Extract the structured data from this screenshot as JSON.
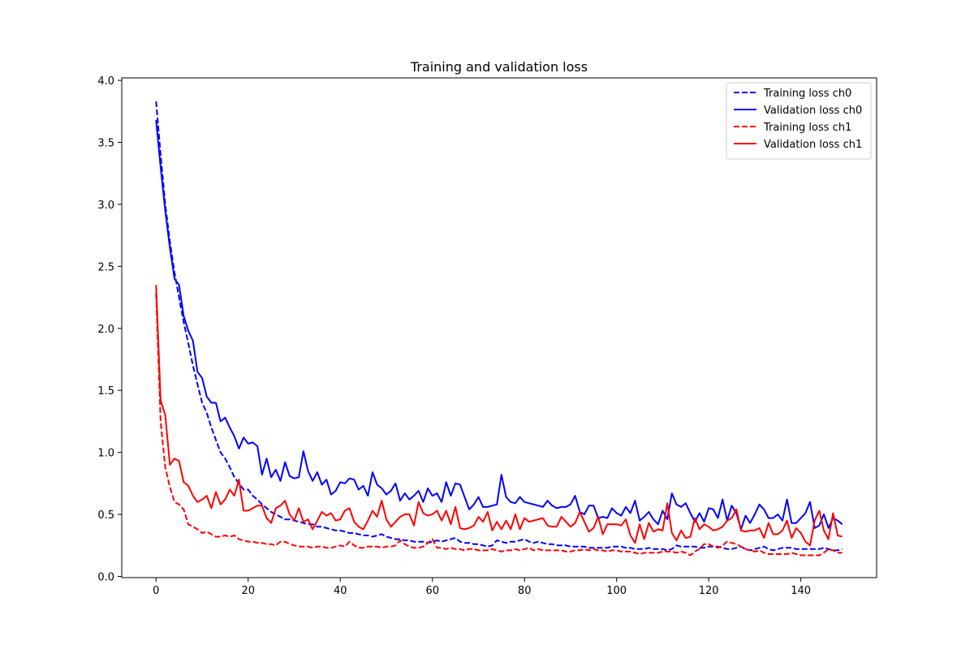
{
  "chart_data": {
    "type": "line",
    "title": "Training and validation loss",
    "xlabel": "",
    "ylabel": "",
    "xlim": [
      -7.45,
      156.45
    ],
    "ylim": [
      -0.01,
      4.02
    ],
    "x_ticks": [
      0,
      20,
      40,
      60,
      80,
      100,
      120,
      140
    ],
    "y_ticks": [
      0.0,
      0.5,
      1.0,
      1.5,
      2.0,
      2.5,
      3.0,
      3.5,
      4.0
    ],
    "grid": false,
    "legend_position": "top-right",
    "series": [
      {
        "name": "Training loss ch0",
        "color": "#0000ff",
        "dash": "dashed",
        "x": [
          0,
          1,
          2,
          3,
          4,
          5,
          6,
          7,
          8,
          9,
          10,
          11,
          12,
          13,
          14,
          15,
          16,
          17,
          18,
          19,
          20,
          21,
          22,
          23,
          24,
          25,
          26,
          27,
          28,
          29,
          30,
          31,
          32,
          33,
          34,
          35,
          36,
          37,
          38,
          39,
          40,
          41,
          42,
          43,
          44,
          45,
          46,
          47,
          48,
          49,
          50,
          51,
          52,
          53,
          54,
          55,
          56,
          57,
          58,
          59,
          60,
          61,
          62,
          63,
          64,
          65,
          66,
          67,
          68,
          69,
          70,
          71,
          72,
          73,
          74,
          75,
          76,
          77,
          78,
          79,
          80,
          81,
          82,
          83,
          84,
          85,
          86,
          87,
          88,
          89,
          90,
          91,
          92,
          93,
          94,
          95,
          96,
          97,
          98,
          99,
          100,
          101,
          102,
          103,
          104,
          105,
          106,
          107,
          108,
          109,
          110,
          111,
          112,
          113,
          114,
          115,
          116,
          117,
          118,
          119,
          120,
          121,
          122,
          123,
          124,
          125,
          126,
          127,
          128,
          129,
          130,
          131,
          132,
          133,
          134,
          135,
          136,
          137,
          138,
          139,
          140,
          141,
          142,
          143,
          144,
          145,
          146,
          147,
          148,
          149
        ],
        "y": [
          3.83,
          3.4,
          3.0,
          2.7,
          2.45,
          2.25,
          2.05,
          1.88,
          1.7,
          1.55,
          1.4,
          1.32,
          1.2,
          1.1,
          1.0,
          0.95,
          0.88,
          0.8,
          0.75,
          0.7,
          0.7,
          0.65,
          0.62,
          0.58,
          0.55,
          0.52,
          0.5,
          0.48,
          0.46,
          0.46,
          0.45,
          0.44,
          0.43,
          0.42,
          0.42,
          0.4,
          0.4,
          0.39,
          0.38,
          0.37,
          0.37,
          0.36,
          0.35,
          0.35,
          0.34,
          0.33,
          0.33,
          0.32,
          0.33,
          0.34,
          0.32,
          0.31,
          0.3,
          0.3,
          0.29,
          0.29,
          0.28,
          0.28,
          0.28,
          0.27,
          0.28,
          0.29,
          0.28,
          0.29,
          0.3,
          0.31,
          0.28,
          0.27,
          0.27,
          0.26,
          0.26,
          0.25,
          0.24,
          0.25,
          0.29,
          0.28,
          0.27,
          0.28,
          0.28,
          0.29,
          0.3,
          0.28,
          0.27,
          0.28,
          0.27,
          0.26,
          0.26,
          0.25,
          0.25,
          0.25,
          0.24,
          0.24,
          0.24,
          0.24,
          0.23,
          0.23,
          0.23,
          0.23,
          0.23,
          0.24,
          0.24,
          0.24,
          0.23,
          0.23,
          0.22,
          0.22,
          0.22,
          0.23,
          0.22,
          0.22,
          0.22,
          0.21,
          0.22,
          0.25,
          0.24,
          0.24,
          0.24,
          0.24,
          0.23,
          0.23,
          0.24,
          0.24,
          0.24,
          0.23,
          0.22,
          0.22,
          0.23,
          0.24,
          0.22,
          0.21,
          0.22,
          0.23,
          0.24,
          0.22,
          0.21,
          0.22,
          0.23,
          0.23,
          0.23,
          0.22,
          0.22,
          0.22,
          0.22,
          0.22,
          0.22,
          0.23,
          0.22,
          0.21,
          0.21,
          0.22
        ]
      },
      {
        "name": "Validation loss ch0",
        "color": "#0000ff",
        "dash": "solid",
        "x": [
          0,
          1,
          2,
          3,
          4,
          5,
          6,
          7,
          8,
          9,
          10,
          11,
          12,
          13,
          14,
          15,
          16,
          17,
          18,
          19,
          20,
          21,
          22,
          23,
          24,
          25,
          26,
          27,
          28,
          29,
          30,
          31,
          32,
          33,
          34,
          35,
          36,
          37,
          38,
          39,
          40,
          41,
          42,
          43,
          44,
          45,
          46,
          47,
          48,
          49,
          50,
          51,
          52,
          53,
          54,
          55,
          56,
          57,
          58,
          59,
          60,
          61,
          62,
          63,
          64,
          65,
          66,
          67,
          68,
          69,
          70,
          71,
          72,
          73,
          74,
          75,
          76,
          77,
          78,
          79,
          80,
          81,
          82,
          83,
          84,
          85,
          86,
          87,
          88,
          89,
          90,
          91,
          92,
          93,
          94,
          95,
          96,
          97,
          98,
          99,
          100,
          101,
          102,
          103,
          104,
          105,
          106,
          107,
          108,
          109,
          110,
          111,
          112,
          113,
          114,
          115,
          116,
          117,
          118,
          119,
          120,
          121,
          122,
          123,
          124,
          125,
          126,
          127,
          128,
          129,
          130,
          131,
          132,
          133,
          134,
          135,
          136,
          137,
          138,
          139,
          140,
          141,
          142,
          143,
          144,
          145,
          146,
          147,
          148,
          149
        ],
        "y": [
          3.68,
          3.3,
          2.95,
          2.65,
          2.4,
          2.35,
          2.1,
          1.98,
          1.9,
          1.65,
          1.6,
          1.45,
          1.4,
          1.4,
          1.25,
          1.28,
          1.2,
          1.13,
          1.03,
          1.12,
          1.07,
          1.08,
          1.05,
          0.82,
          0.95,
          0.8,
          0.86,
          0.77,
          0.92,
          0.81,
          0.79,
          0.8,
          1.01,
          0.85,
          0.77,
          0.84,
          0.74,
          0.78,
          0.66,
          0.69,
          0.76,
          0.75,
          0.79,
          0.78,
          0.7,
          0.73,
          0.65,
          0.84,
          0.74,
          0.71,
          0.66,
          0.69,
          0.75,
          0.61,
          0.67,
          0.62,
          0.65,
          0.69,
          0.6,
          0.71,
          0.65,
          0.67,
          0.6,
          0.76,
          0.65,
          0.75,
          0.74,
          0.64,
          0.54,
          0.58,
          0.64,
          0.56,
          0.56,
          0.57,
          0.58,
          0.82,
          0.64,
          0.6,
          0.59,
          0.64,
          0.6,
          0.59,
          0.58,
          0.57,
          0.56,
          0.61,
          0.57,
          0.55,
          0.56,
          0.56,
          0.58,
          0.65,
          0.52,
          0.5,
          0.57,
          0.57,
          0.47,
          0.48,
          0.47,
          0.55,
          0.51,
          0.49,
          0.56,
          0.51,
          0.61,
          0.45,
          0.48,
          0.52,
          0.46,
          0.42,
          0.53,
          0.46,
          0.67,
          0.58,
          0.56,
          0.59,
          0.51,
          0.44,
          0.51,
          0.44,
          0.55,
          0.54,
          0.47,
          0.62,
          0.45,
          0.57,
          0.51,
          0.38,
          0.49,
          0.43,
          0.5,
          0.58,
          0.54,
          0.47,
          0.47,
          0.5,
          0.45,
          0.62,
          0.43,
          0.43,
          0.47,
          0.51,
          0.6,
          0.39,
          0.41,
          0.5,
          0.39,
          0.47,
          0.45,
          0.42
        ]
      },
      {
        "name": "Training loss ch1",
        "color": "#ff0000",
        "dash": "dashed",
        "x": [
          0,
          1,
          2,
          3,
          4,
          5,
          6,
          7,
          8,
          9,
          10,
          11,
          12,
          13,
          14,
          15,
          16,
          17,
          18,
          19,
          20,
          21,
          22,
          23,
          24,
          25,
          26,
          27,
          28,
          29,
          30,
          31,
          32,
          33,
          34,
          35,
          36,
          37,
          38,
          39,
          40,
          41,
          42,
          43,
          44,
          45,
          46,
          47,
          48,
          49,
          50,
          51,
          52,
          53,
          54,
          55,
          56,
          57,
          58,
          59,
          60,
          61,
          62,
          63,
          64,
          65,
          66,
          67,
          68,
          69,
          70,
          71,
          72,
          73,
          74,
          75,
          76,
          77,
          78,
          79,
          80,
          81,
          82,
          83,
          84,
          85,
          86,
          87,
          88,
          89,
          90,
          91,
          92,
          93,
          94,
          95,
          96,
          97,
          98,
          99,
          100,
          101,
          102,
          103,
          104,
          105,
          106,
          107,
          108,
          109,
          110,
          111,
          112,
          113,
          114,
          115,
          116,
          117,
          118,
          119,
          120,
          121,
          122,
          123,
          124,
          125,
          126,
          127,
          128,
          129,
          130,
          131,
          132,
          133,
          134,
          135,
          136,
          137,
          138,
          139,
          140,
          141,
          142,
          143,
          144,
          145,
          146,
          147,
          148,
          149
        ],
        "y": [
          2.28,
          1.25,
          0.88,
          0.72,
          0.6,
          0.58,
          0.54,
          0.42,
          0.4,
          0.38,
          0.35,
          0.36,
          0.34,
          0.32,
          0.32,
          0.33,
          0.32,
          0.33,
          0.3,
          0.29,
          0.28,
          0.28,
          0.27,
          0.27,
          0.26,
          0.26,
          0.25,
          0.28,
          0.28,
          0.26,
          0.25,
          0.24,
          0.24,
          0.24,
          0.23,
          0.24,
          0.24,
          0.23,
          0.23,
          0.24,
          0.25,
          0.24,
          0.28,
          0.25,
          0.23,
          0.23,
          0.24,
          0.24,
          0.24,
          0.23,
          0.24,
          0.24,
          0.25,
          0.29,
          0.26,
          0.24,
          0.23,
          0.23,
          0.24,
          0.27,
          0.3,
          0.23,
          0.23,
          0.22,
          0.23,
          0.22,
          0.22,
          0.21,
          0.22,
          0.22,
          0.21,
          0.21,
          0.21,
          0.22,
          0.21,
          0.2,
          0.21,
          0.21,
          0.22,
          0.21,
          0.22,
          0.23,
          0.21,
          0.22,
          0.21,
          0.21,
          0.21,
          0.21,
          0.21,
          0.2,
          0.2,
          0.21,
          0.21,
          0.22,
          0.21,
          0.22,
          0.21,
          0.21,
          0.2,
          0.21,
          0.21,
          0.2,
          0.2,
          0.2,
          0.19,
          0.18,
          0.19,
          0.19,
          0.19,
          0.19,
          0.2,
          0.2,
          0.2,
          0.19,
          0.2,
          0.19,
          0.17,
          0.2,
          0.22,
          0.26,
          0.26,
          0.24,
          0.23,
          0.25,
          0.28,
          0.27,
          0.26,
          0.24,
          0.22,
          0.21,
          0.2,
          0.21,
          0.19,
          0.18,
          0.18,
          0.18,
          0.18,
          0.18,
          0.19,
          0.18,
          0.17,
          0.17,
          0.17,
          0.17,
          0.17,
          0.19,
          0.22,
          0.21,
          0.19,
          0.19
        ]
      },
      {
        "name": "Validation loss ch1",
        "color": "#ff0000",
        "dash": "solid",
        "x": [
          0,
          1,
          2,
          3,
          4,
          5,
          6,
          7,
          8,
          9,
          10,
          11,
          12,
          13,
          14,
          15,
          16,
          17,
          18,
          19,
          20,
          21,
          22,
          23,
          24,
          25,
          26,
          27,
          28,
          29,
          30,
          31,
          32,
          33,
          34,
          35,
          36,
          37,
          38,
          39,
          40,
          41,
          42,
          43,
          44,
          45,
          46,
          47,
          48,
          49,
          50,
          51,
          52,
          53,
          54,
          55,
          56,
          57,
          58,
          59,
          60,
          61,
          62,
          63,
          64,
          65,
          66,
          67,
          68,
          69,
          70,
          71,
          72,
          73,
          74,
          75,
          76,
          77,
          78,
          79,
          80,
          81,
          82,
          83,
          84,
          85,
          86,
          87,
          88,
          89,
          90,
          91,
          92,
          93,
          94,
          95,
          96,
          97,
          98,
          99,
          100,
          101,
          102,
          103,
          104,
          105,
          106,
          107,
          108,
          109,
          110,
          111,
          112,
          113,
          114,
          115,
          116,
          117,
          118,
          119,
          120,
          121,
          122,
          123,
          124,
          125,
          126,
          127,
          128,
          129,
          130,
          131,
          132,
          133,
          134,
          135,
          136,
          137,
          138,
          139,
          140,
          141,
          142,
          143,
          144,
          145,
          146,
          147,
          148,
          149
        ],
        "y": [
          2.35,
          1.42,
          1.3,
          0.9,
          0.95,
          0.93,
          0.76,
          0.73,
          0.65,
          0.6,
          0.62,
          0.65,
          0.55,
          0.68,
          0.58,
          0.62,
          0.7,
          0.65,
          0.78,
          0.53,
          0.53,
          0.55,
          0.57,
          0.57,
          0.47,
          0.43,
          0.55,
          0.57,
          0.61,
          0.5,
          0.45,
          0.55,
          0.44,
          0.46,
          0.38,
          0.45,
          0.52,
          0.49,
          0.51,
          0.45,
          0.46,
          0.53,
          0.55,
          0.44,
          0.4,
          0.38,
          0.45,
          0.53,
          0.48,
          0.61,
          0.46,
          0.4,
          0.44,
          0.48,
          0.5,
          0.5,
          0.41,
          0.6,
          0.51,
          0.49,
          0.5,
          0.53,
          0.45,
          0.53,
          0.42,
          0.56,
          0.39,
          0.38,
          0.39,
          0.41,
          0.48,
          0.44,
          0.52,
          0.37,
          0.44,
          0.38,
          0.45,
          0.38,
          0.5,
          0.38,
          0.47,
          0.44,
          0.45,
          0.46,
          0.47,
          0.41,
          0.4,
          0.4,
          0.48,
          0.44,
          0.4,
          0.43,
          0.52,
          0.44,
          0.36,
          0.39,
          0.48,
          0.34,
          0.42,
          0.42,
          0.42,
          0.41,
          0.46,
          0.33,
          0.27,
          0.42,
          0.3,
          0.43,
          0.36,
          0.38,
          0.37,
          0.59,
          0.35,
          0.29,
          0.37,
          0.31,
          0.32,
          0.47,
          0.38,
          0.42,
          0.4,
          0.37,
          0.38,
          0.4,
          0.45,
          0.47,
          0.54,
          0.37,
          0.36,
          0.37,
          0.37,
          0.39,
          0.31,
          0.43,
          0.34,
          0.34,
          0.37,
          0.45,
          0.31,
          0.39,
          0.35,
          0.28,
          0.25,
          0.45,
          0.53,
          0.37,
          0.3,
          0.51,
          0.33,
          0.32
        ]
      }
    ]
  }
}
